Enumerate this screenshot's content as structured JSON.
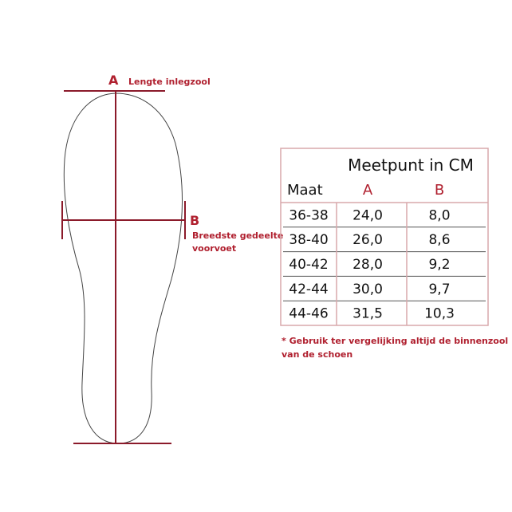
{
  "diagram": {
    "a": {
      "letter": "A",
      "text": "Lengte inlegzool"
    },
    "b": {
      "letter": "B",
      "lines": [
        "Breedste gedeelte",
        "voorvoet"
      ]
    }
  },
  "table": {
    "title": "Meetpunt in CM",
    "header": [
      "Maat",
      "A",
      "B"
    ],
    "rows": [
      [
        "36-38",
        "24,0",
        "8,0"
      ],
      [
        "38-40",
        "26,0",
        "8,6"
      ],
      [
        "40-42",
        "28,0",
        "9,2"
      ],
      [
        "42-44",
        "30,0",
        "9,7"
      ],
      [
        "44-46",
        "31,5",
        "10,3"
      ]
    ]
  },
  "footnote": [
    "* Gebruik ter vergelijking altijd de binnenzool",
    "van de schoen"
  ]
}
